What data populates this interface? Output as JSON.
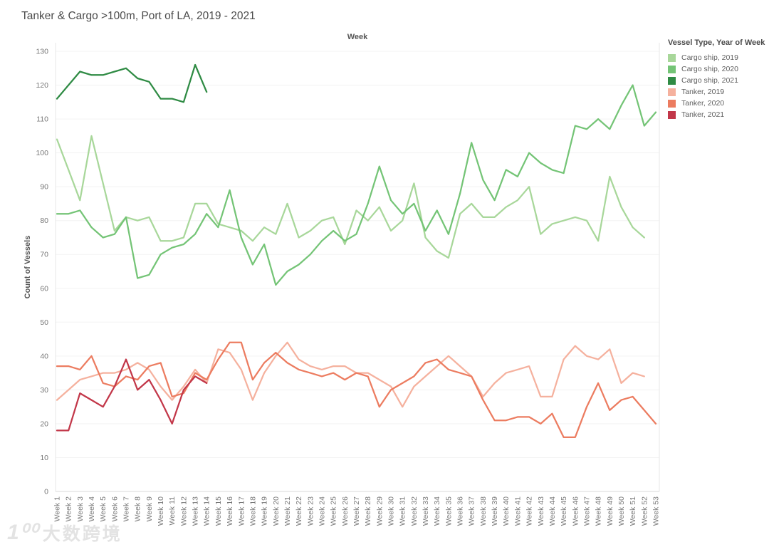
{
  "title": "Tanker & Cargo >100m, Port of LA, 2019 - 2021",
  "legend": {
    "title": "Vessel Type, Year of Week",
    "items": [
      {
        "label": "Cargo ship, 2019",
        "color": "#a8d79a"
      },
      {
        "label": "Cargo ship, 2020",
        "color": "#74c476"
      },
      {
        "label": "Cargo ship, 2021",
        "color": "#2f8b44"
      },
      {
        "label": "Tanker, 2019",
        "color": "#f5b19e"
      },
      {
        "label": "Tanker, 2020",
        "color": "#ec7c60"
      },
      {
        "label": "Tanker, 2021",
        "color": "#c23749"
      }
    ]
  },
  "watermark": {
    "logo_text": "1⁰⁰",
    "text": "大数跨境"
  },
  "chart_data": {
    "type": "line",
    "title": "Tanker & Cargo >100m, Port of LA, 2019 - 2021",
    "xlabel": "Week",
    "ylabel": "Count of Vessels",
    "ylim": [
      0,
      130
    ],
    "ytick_step": 10,
    "grid": true,
    "legend_position": "right",
    "categories": [
      "Week 1",
      "Week 2",
      "Week 3",
      "Week 4",
      "Week 5",
      "Week 6",
      "Week 7",
      "Week 8",
      "Week 9",
      "Week 10",
      "Week 11",
      "Week 12",
      "Week 13",
      "Week 14",
      "Week 15",
      "Week 16",
      "Week 17",
      "Week 18",
      "Week 19",
      "Week 20",
      "Week 21",
      "Week 22",
      "Week 23",
      "Week 24",
      "Week 25",
      "Week 26",
      "Week 27",
      "Week 28",
      "Week 29",
      "Week 30",
      "Week 31",
      "Week 32",
      "Week 33",
      "Week 34",
      "Week 35",
      "Week 36",
      "Week 37",
      "Week 38",
      "Week 39",
      "Week 40",
      "Week 41",
      "Week 42",
      "Week 43",
      "Week 44",
      "Week 45",
      "Week 46",
      "Week 47",
      "Week 48",
      "Week 49",
      "Week 50",
      "Week 51",
      "Week 52",
      "Week 53"
    ],
    "series": [
      {
        "name": "Cargo ship, 2019",
        "color": "#a8d79a",
        "values": [
          104,
          95,
          86,
          105,
          91,
          77,
          81,
          80,
          81,
          74,
          74,
          75,
          85,
          85,
          79,
          78,
          77,
          74,
          78,
          76,
          85,
          75,
          77,
          80,
          81,
          73,
          83,
          80,
          84,
          77,
          80,
          91,
          75,
          71,
          69,
          82,
          85,
          81,
          81,
          84,
          86,
          90,
          76,
          79,
          80,
          81,
          80,
          74,
          93,
          84,
          78,
          75
        ]
      },
      {
        "name": "Cargo ship, 2020",
        "color": "#74c476",
        "values": [
          82,
          82,
          83,
          78,
          75,
          76,
          81,
          63,
          64,
          70,
          72,
          73,
          76,
          82,
          78,
          89,
          75,
          67,
          73,
          61,
          65,
          67,
          70,
          74,
          77,
          74,
          76,
          85,
          96,
          86,
          82,
          85,
          77,
          83,
          76,
          88,
          103,
          92,
          86,
          95,
          93,
          100,
          97,
          95,
          94,
          108,
          107,
          110,
          107,
          114,
          120,
          108,
          112
        ]
      },
      {
        "name": "Cargo ship, 2021",
        "color": "#2f8b44",
        "values": [
          116,
          120,
          124,
          123,
          123,
          124,
          125,
          122,
          121,
          116,
          116,
          115,
          126,
          118
        ]
      },
      {
        "name": "Tanker, 2019",
        "color": "#f5b19e",
        "values": [
          27,
          30,
          33,
          34,
          35,
          35,
          36,
          38,
          36,
          31,
          27,
          31,
          36,
          32,
          42,
          41,
          36,
          27,
          35,
          40,
          44,
          39,
          37,
          36,
          37,
          37,
          35,
          35,
          33,
          31,
          25,
          31,
          34,
          37,
          40,
          37,
          34,
          28,
          32,
          35,
          36,
          37,
          28,
          28,
          39,
          43,
          40,
          39,
          42,
          32,
          35,
          34
        ]
      },
      {
        "name": "Tanker, 2020",
        "color": "#ec7c60",
        "values": [
          37,
          37,
          36,
          40,
          32,
          31,
          34,
          33,
          37,
          38,
          28,
          29,
          35,
          33,
          39,
          44,
          44,
          33,
          38,
          41,
          38,
          36,
          35,
          34,
          35,
          33,
          35,
          34,
          25,
          30,
          32,
          34,
          38,
          39,
          36,
          35,
          34,
          27,
          21,
          21,
          22,
          22,
          20,
          23,
          16,
          16,
          25,
          32,
          24,
          27,
          28,
          24,
          20
        ]
      },
      {
        "name": "Tanker, 2021",
        "color": "#c23749",
        "values": [
          18,
          18,
          29,
          27,
          25,
          31,
          39,
          30,
          33,
          27,
          20,
          30,
          34,
          32
        ]
      }
    ]
  }
}
